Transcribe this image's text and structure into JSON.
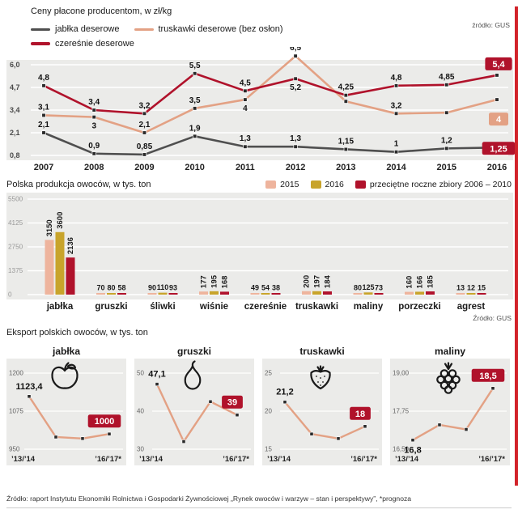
{
  "colors": {
    "dark_red": "#b0122b",
    "salmon": "#e3a184",
    "salmon_bar": "#eeb49d",
    "gold": "#c8a42b",
    "gray_line": "#4f4f4f",
    "panel": "#ebebe9",
    "stripe_red": "#d2232a"
  },
  "chart_data": [
    {
      "id": "producer-prices",
      "type": "line",
      "title": "Ceny płacone producentom, w zł/kg",
      "source": "źródło: GUS",
      "x": [
        "2007",
        "2008",
        "2009",
        "2010",
        "2011",
        "2012",
        "2013",
        "2014",
        "2015",
        "2016"
      ],
      "ymin": 0.8,
      "ymax": 6.0,
      "yticks": [
        {
          "v": 6.0,
          "label": "6,0"
        },
        {
          "v": 4.7,
          "label": "4,7"
        },
        {
          "v": 3.4,
          "label": "3,4"
        },
        {
          "v": 2.1,
          "label": "2,1"
        },
        {
          "v": 0.8,
          "label": "0,8"
        }
      ],
      "series": [
        {
          "name": "jabłka deserowe",
          "slug": "jablka",
          "color_key": "gray_line",
          "badge_color_key": "dark_red",
          "badge_dy": 1,
          "values": [
            2.1,
            0.9,
            0.85,
            1.9,
            1.3,
            1.3,
            1.15,
            1.0,
            1.2,
            1.25
          ],
          "labels": [
            "2,1",
            "0,9",
            "0,85",
            "1,9",
            "1,3",
            "1,3",
            "1,15",
            "1",
            "1,2",
            "1,25"
          ],
          "label_pos": [
            "above",
            "above",
            "above",
            "above",
            "above",
            "above",
            "above",
            "above",
            "above",
            "badge"
          ]
        },
        {
          "name": "truskawki deserowe (bez osłon)",
          "slug": "truskawki",
          "color_key": "salmon",
          "badge_color_key": "salmon",
          "badge_dy": 24,
          "values": [
            3.1,
            3.0,
            2.1,
            3.5,
            4.0,
            6.5,
            3.9,
            3.2,
            3.25,
            4.0
          ],
          "labels": [
            "3,1",
            "3",
            "2,1",
            "3,5",
            "4",
            "6,5",
            "",
            "3,2",
            "",
            "4"
          ],
          "label_pos": [
            "above",
            "below",
            "above",
            "above",
            "below",
            "above",
            "",
            "above",
            "",
            "badge"
          ]
        },
        {
          "name": "czereśnie deserowe",
          "slug": "czeresnie",
          "color_key": "dark_red",
          "badge_color_key": "dark_red",
          "badge_dy": -14,
          "values": [
            4.8,
            3.4,
            3.2,
            5.5,
            4.5,
            5.2,
            4.25,
            4.8,
            4.85,
            5.4
          ],
          "labels": [
            "4,8",
            "3,4",
            "3,2",
            "5,5",
            "4,5",
            "5,2",
            "4,25",
            "4,8",
            "4,85",
            "5,4"
          ],
          "label_pos": [
            "above",
            "above",
            "above",
            "above",
            "above",
            "below",
            "above",
            "above",
            "above",
            "badge"
          ]
        }
      ]
    },
    {
      "id": "production",
      "type": "bar",
      "title": "Polska produkcja owoców, w tys. ton",
      "source": "Źródło: GUS",
      "ymax": 5500,
      "yticks": [
        {
          "v": 5500,
          "label": "5500"
        },
        {
          "v": 4125,
          "label": "4125"
        },
        {
          "v": 2750,
          "label": "2750"
        },
        {
          "v": 1375,
          "label": "1375"
        },
        {
          "v": 0,
          "label": "0"
        }
      ],
      "legend": [
        {
          "label": "2015",
          "color_key": "salmon_bar"
        },
        {
          "label": "2016",
          "color_key": "gold"
        },
        {
          "label": "przeciętne roczne zbiory 2006 – 2010",
          "color_key": "dark_red"
        }
      ],
      "categories": [
        {
          "name": "jabłka",
          "values": [
            3150,
            3600,
            2136
          ],
          "labels": [
            "3150",
            "3600",
            "2136"
          ],
          "rotated": true
        },
        {
          "name": "gruszki",
          "values": [
            70,
            80,
            58
          ],
          "labels": [
            "70",
            "80",
            "58"
          ],
          "rotated": false
        },
        {
          "name": "śliwki",
          "values": [
            90,
            110,
            93
          ],
          "labels": [
            "90",
            "110",
            "93"
          ],
          "rotated": false
        },
        {
          "name": "wiśnie",
          "values": [
            177,
            195,
            168
          ],
          "labels": [
            "177",
            "195",
            "168"
          ],
          "rotated": true
        },
        {
          "name": "czereśnie",
          "values": [
            49,
            54,
            38
          ],
          "labels": [
            "49",
            "54",
            "38"
          ],
          "rotated": false
        },
        {
          "name": "truskawki",
          "values": [
            200,
            197,
            184
          ],
          "labels": [
            "200",
            "197",
            "184"
          ],
          "rotated": true
        },
        {
          "name": "maliny",
          "values": [
            80,
            125,
            73
          ],
          "labels": [
            "80",
            "125",
            "73"
          ],
          "rotated": false
        },
        {
          "name": "porzeczki",
          "values": [
            160,
            166,
            185
          ],
          "labels": [
            "160",
            "166",
            "185"
          ],
          "rotated": true
        },
        {
          "name": "agrest",
          "values": [
            13,
            12,
            15
          ],
          "labels": [
            "13",
            "12",
            "15"
          ],
          "rotated": false
        }
      ]
    },
    {
      "id": "exports",
      "type": "line",
      "title": "Eksport polskich owoców, w tys. ton",
      "x_left": "’13/’14",
      "x_right": "’16/’17*",
      "charts": [
        {
          "name": "jabłka",
          "slug": "jablka",
          "icon": "apple-icon",
          "ymin": 950,
          "ymax": 1200,
          "yticks": [
            {
              "v": 1200,
              "label": "1200"
            },
            {
              "v": 1075,
              "label": "1075"
            },
            {
              "v": 950,
              "label": "950"
            }
          ],
          "values": [
            1123.4,
            990,
            985,
            1000
          ],
          "start_label": "1123,4",
          "start_pos": "above",
          "end_label": "1000"
        },
        {
          "name": "gruszki",
          "slug": "gruszki",
          "icon": "pear-icon",
          "ymin": 30,
          "ymax": 50,
          "yticks": [
            {
              "v": 50,
              "label": "50"
            },
            {
              "v": 40,
              "label": "40"
            },
            {
              "v": 30,
              "label": "30"
            }
          ],
          "values": [
            47.1,
            32,
            42.5,
            39
          ],
          "start_label": "47,1",
          "start_pos": "above",
          "end_label": "39"
        },
        {
          "name": "truskawki",
          "slug": "truskawki",
          "icon": "strawberry-icon",
          "ymin": 15,
          "ymax": 25,
          "yticks": [
            {
              "v": 25,
              "label": "25"
            },
            {
              "v": 20,
              "label": "20"
            },
            {
              "v": 15,
              "label": "15"
            }
          ],
          "values": [
            21.2,
            17,
            16.4,
            18
          ],
          "start_label": "21,2",
          "start_pos": "above",
          "end_label": "18"
        },
        {
          "name": "maliny",
          "slug": "maliny",
          "icon": "raspberry-icon",
          "ymin": 16.5,
          "ymax": 19.0,
          "yticks": [
            {
              "v": 19.0,
              "label": "19,00"
            },
            {
              "v": 17.75,
              "label": "17,75"
            },
            {
              "v": 16.5,
              "label": "16,50"
            }
          ],
          "values": [
            16.8,
            17.3,
            17.15,
            18.5
          ],
          "start_label": "16,8",
          "start_pos": "below",
          "end_label": "18,5"
        }
      ]
    }
  ],
  "footer": {
    "text": "Źródło: raport Instytutu Ekonomiki Rolnictwa i Gospodarki Żywnościowej „Rynek owoców i warzyw – stan i perspektywy”, *prognoza"
  }
}
